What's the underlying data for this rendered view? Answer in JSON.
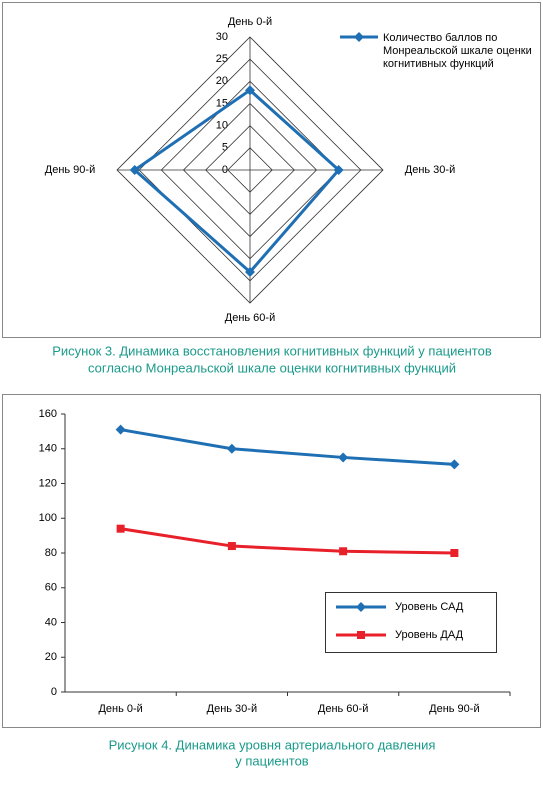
{
  "chart_data": [
    {
      "type": "radar",
      "categories": [
        "День 0-й",
        "День 30-й",
        "День 60-й",
        "День 90-й"
      ],
      "series": [
        {
          "name": "Количество баллов по Монреальской шкале оценки когнитивных функций",
          "color": "#1f6fb4",
          "values": [
            18,
            20,
            23,
            26
          ]
        }
      ],
      "rlim": [
        0,
        30
      ],
      "rticks": [
        0,
        5,
        10,
        15,
        20,
        25,
        30
      ],
      "grid": true,
      "legend": "top-right",
      "caption": [
        "Рисунок 3.  Динамика восстановления когнитивных функций у пациентов",
        "согласно Монреальской шкале оценки когнитивных функций"
      ]
    },
    {
      "type": "line",
      "categories": [
        "День 0-й",
        "День 30-й",
        "День 60-й",
        "День 90-й"
      ],
      "series": [
        {
          "name": "Уровень САД",
          "color": "#1f6fb4",
          "marker": "diamond",
          "values": [
            151,
            140,
            135,
            131
          ]
        },
        {
          "name": "Уровень ДАД",
          "color": "#e8202a",
          "marker": "square",
          "values": [
            94,
            84,
            81,
            80
          ]
        }
      ],
      "ylim": [
        0,
        160
      ],
      "yticks": [
        0,
        20,
        40,
        60,
        80,
        100,
        120,
        140,
        160
      ],
      "grid": false,
      "legend": "bottom-right",
      "caption": [
        "Рисунок 4.  Динамика уровня артериального давления",
        "у пациентов"
      ]
    }
  ]
}
